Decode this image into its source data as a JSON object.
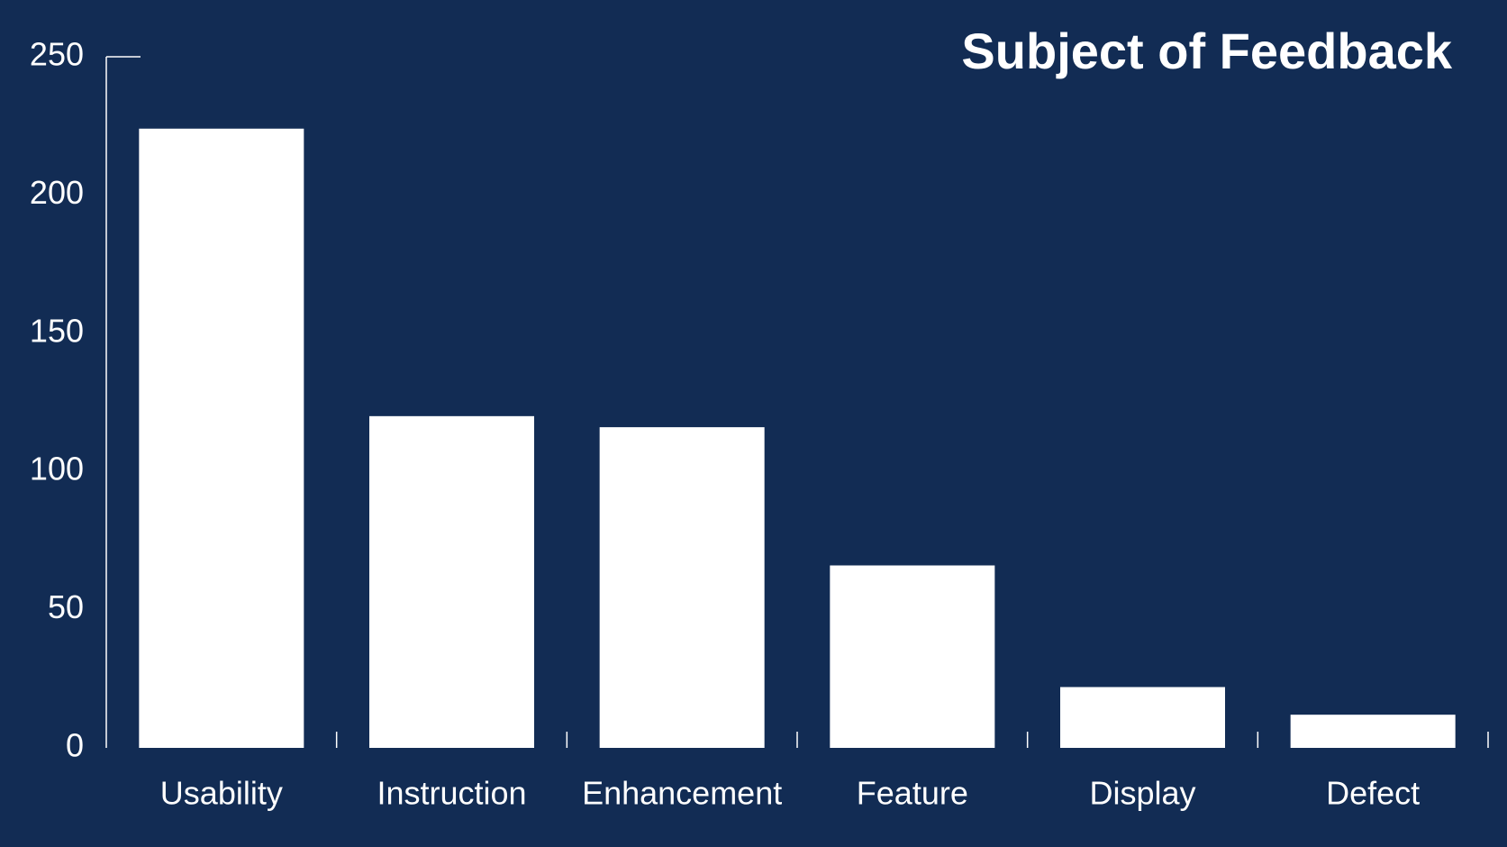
{
  "chart_data": {
    "type": "bar",
    "title": "Subject of Feedback",
    "xlabel": "",
    "ylabel": "",
    "categories": [
      "Usability",
      "Instruction",
      "Enhancement",
      "Feature",
      "Display",
      "Defect"
    ],
    "values": [
      224,
      120,
      116,
      66,
      22,
      12
    ],
    "ylim": [
      0,
      250
    ],
    "yticks": [
      0,
      50,
      100,
      150,
      200,
      250
    ],
    "grid": false,
    "legend": "none"
  },
  "colors": {
    "background": "#122c54",
    "bar": "#ffffff",
    "text": "#ffffff"
  }
}
